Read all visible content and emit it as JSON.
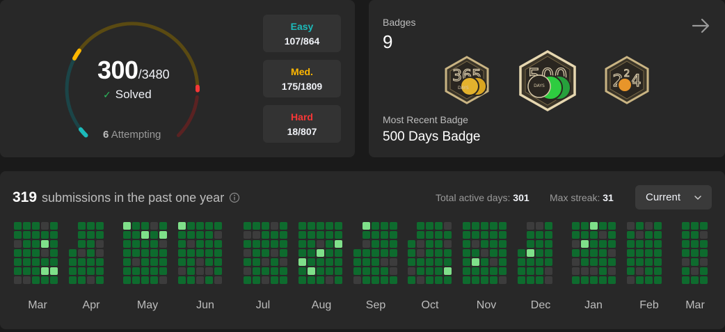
{
  "progress": {
    "solved": "300",
    "total": "/3480",
    "solved_label": "Solved",
    "attempting_count": "6",
    "attempting_label": "Attempting",
    "difficulties": [
      {
        "label": "Easy",
        "value": "107/864",
        "color": "#1cbaba"
      },
      {
        "label": "Med.",
        "value": "175/1809",
        "color": "#ffb700"
      },
      {
        "label": "Hard",
        "value": "18/807",
        "color": "#f63737"
      }
    ]
  },
  "badges": {
    "title": "Badges",
    "count": "9",
    "recent_label": "Most Recent Badge",
    "recent_name": "500 Days Badge",
    "items": [
      {
        "name": "365-days-badge",
        "number": "365",
        "fill": "#d9a520"
      },
      {
        "name": "500-days-badge",
        "number": "500",
        "fill": "#2ecc40"
      },
      {
        "name": "2024-badge",
        "number": "2024",
        "fill": "#e8952a"
      }
    ]
  },
  "calendar": {
    "count": "319",
    "heading": "submissions in the past one year",
    "active_label": "Total active days:",
    "active_value": "301",
    "streak_label": "Max streak:",
    "streak_value": "31",
    "dropdown_value": "Current",
    "months": [
      "Mar",
      "Apr",
      "May",
      "Jun",
      "Jul",
      "Aug",
      "Sep",
      "Oct",
      "Nov",
      "Dec",
      "Jan",
      "Feb",
      "Mar"
    ],
    "colors": {
      "empty": "#3c3c3c",
      "level1": "#0e6b2e",
      "level2": "#2aa14a",
      "level3": "#7fe08a"
    }
  }
}
